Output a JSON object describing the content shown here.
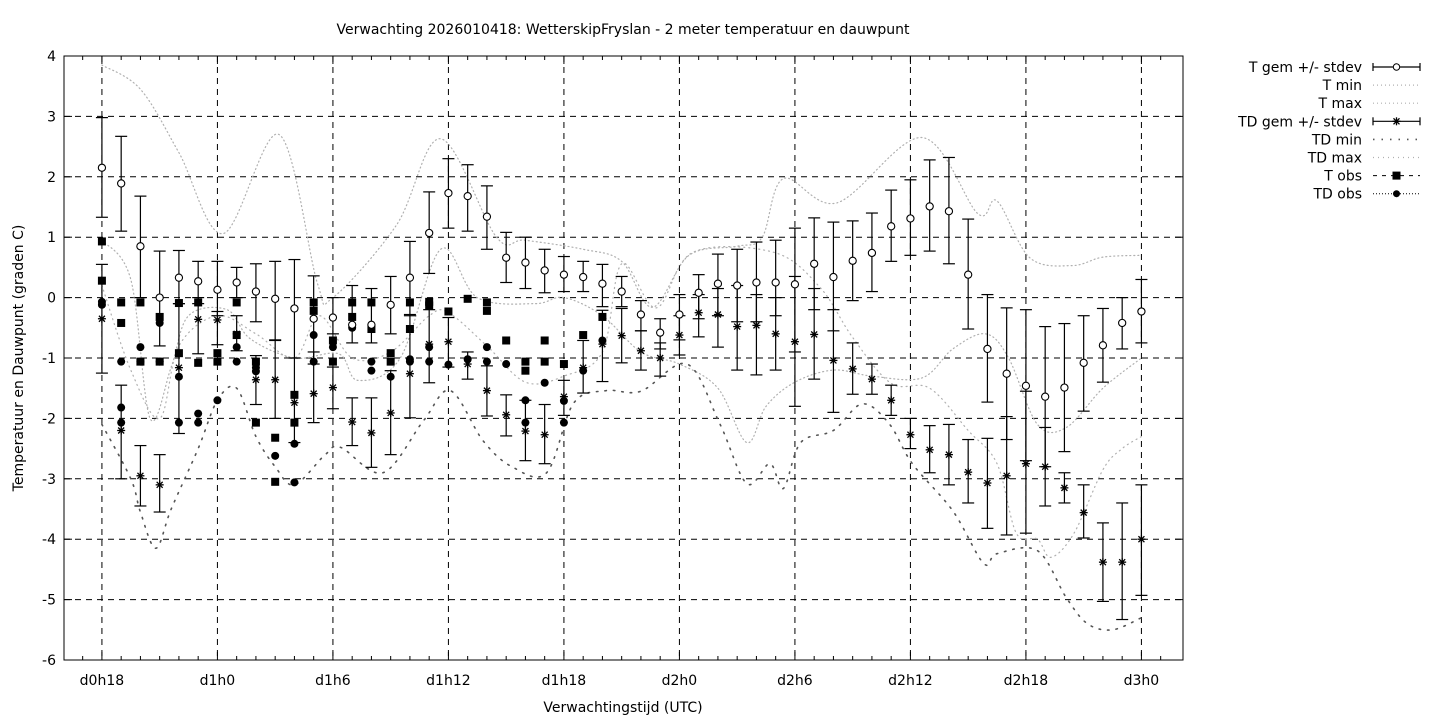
{
  "chart_data": {
    "type": "line",
    "title": "Verwachting 2026010418: WetterskipFryslan - 2 meter temperatuur en dauwpunt",
    "xlabel": "Verwachtingstijd (UTC)",
    "ylabel": "Temperatuur en Dauwpunt (graden C)",
    "xlim": [
      16.03,
      74.16
    ],
    "ylim": [
      -6,
      4
    ],
    "grid": true,
    "legend_position": "outside-top-right",
    "legend": [
      "T gem +/- stdev",
      "T min",
      "T max",
      "TD gem +/- stdev",
      "TD min",
      "TD max",
      "T obs",
      "TD obs"
    ],
    "x_ticks": [
      {
        "value": 18,
        "label": "d0h18"
      },
      {
        "value": 24,
        "label": "d1h0"
      },
      {
        "value": 30,
        "label": "d1h6"
      },
      {
        "value": 36,
        "label": "d1h12"
      },
      {
        "value": 42,
        "label": "d1h18"
      },
      {
        "value": 48,
        "label": "d2h0"
      },
      {
        "value": 54,
        "label": "d2h6"
      },
      {
        "value": 60,
        "label": "d2h12"
      },
      {
        "value": 66,
        "label": "d2h18"
      },
      {
        "value": 72,
        "label": "d3h0"
      }
    ],
    "y_ticks": [
      "-6",
      "-5",
      "-4",
      "-3",
      "-2",
      "-1",
      "0",
      "1",
      "2",
      "3",
      "4"
    ],
    "hours_start": 18,
    "t_mean": {
      "mean": [
        2.15,
        1.89,
        0.85,
        0.0,
        0.33,
        0.27,
        0.13,
        0.25,
        0.1,
        -0.02,
        -0.18,
        -0.35,
        -0.33,
        -0.45,
        -0.45,
        -0.12,
        0.33,
        1.07,
        1.73,
        1.68,
        1.34,
        0.66,
        0.58,
        0.45,
        0.38,
        0.34,
        0.23,
        0.1,
        -0.28,
        -0.58,
        -0.28,
        0.08,
        0.23,
        0.2,
        0.25,
        0.25,
        0.22,
        0.56,
        0.34,
        0.61,
        0.74,
        1.18,
        1.31,
        1.51,
        1.43,
        0.38,
        -0.85,
        -1.26,
        -1.46,
        -1.64,
        -1.49,
        -1.08,
        -0.79,
        -0.42,
        -0.23
      ],
      "hi": [
        2.98,
        2.67,
        1.68,
        0.77,
        0.78,
        0.6,
        0.6,
        0.5,
        0.56,
        0.6,
        0.63,
        0.36,
        0.0,
        0.2,
        0.15,
        0.35,
        0.93,
        1.75,
        2.3,
        2.2,
        1.85,
        1.08,
        1.0,
        0.8,
        0.68,
        0.6,
        0.55,
        0.35,
        -0.05,
        -0.35,
        0.05,
        0.38,
        0.72,
        0.8,
        0.92,
        0.95,
        1.15,
        1.32,
        1.25,
        1.27,
        1.4,
        1.78,
        1.95,
        2.28,
        2.32,
        1.3,
        0.05,
        -0.17,
        -0.2,
        -0.48,
        -0.43,
        -0.3,
        -0.18,
        0.0,
        0.3
      ],
      "lo": [
        1.33,
        1.1,
        0.0,
        -0.8,
        -0.1,
        -0.1,
        -0.3,
        0.0,
        -0.4,
        -0.7,
        -1.0,
        -1.1,
        -0.6,
        -0.75,
        -0.75,
        -0.6,
        -0.3,
        0.4,
        1.15,
        1.1,
        0.8,
        0.25,
        0.15,
        0.08,
        0.1,
        0.1,
        -0.15,
        -0.15,
        -0.55,
        -0.85,
        -0.7,
        -0.35,
        -0.3,
        -0.4,
        -0.4,
        -0.3,
        -0.9,
        -0.2,
        -0.55,
        -0.05,
        0.1,
        0.6,
        0.7,
        0.77,
        0.56,
        -0.52,
        -1.73,
        -2.35,
        -2.7,
        -2.8,
        -2.55,
        -1.88,
        -1.4,
        -0.85,
        -0.75
      ]
    },
    "td_mean": {
      "mean": [
        -0.35,
        -2.2,
        -2.95,
        -3.1,
        -1.16,
        -0.36,
        -0.37,
        -0.6,
        -1.36,
        -1.36,
        -1.74,
        -1.59,
        -1.49,
        -2.06,
        -2.24,
        -1.91,
        -1.26,
        -0.77,
        -0.73,
        -1.1,
        -1.54,
        -1.94,
        -2.21,
        -2.27,
        -1.64,
        -1.16,
        -0.77,
        -0.63,
        -0.88,
        -1.0,
        -0.62,
        -0.25,
        -0.28,
        -0.48,
        -0.46,
        -0.6,
        -0.73,
        -0.61,
        -1.04,
        -1.18,
        -1.35,
        -1.7,
        -2.27,
        -2.52,
        -2.6,
        -2.89,
        -3.07,
        -2.95,
        -2.75,
        -2.8,
        -3.15,
        -3.56,
        -4.38,
        -4.38,
        -4.0
      ],
      "hi": [
        0.55,
        -1.45,
        -2.45,
        -2.6,
        -0.1,
        0.0,
        -0.23,
        -0.3,
        -0.96,
        -0.71,
        -1.0,
        -0.9,
        -1.15,
        -1.66,
        -1.66,
        -1.21,
        -0.28,
        -0.2,
        -0.33,
        -0.9,
        -1.13,
        -1.61,
        -1.7,
        -1.77,
        -1.37,
        -0.71,
        -0.21,
        -0.18,
        -0.55,
        -0.75,
        -0.3,
        0.05,
        0.15,
        0.2,
        0.05,
        0.0,
        0.35,
        0.15,
        -0.2,
        -0.75,
        -1.1,
        -1.45,
        -2.0,
        -2.12,
        -2.1,
        -2.35,
        -2.33,
        -1.97,
        -1.55,
        -2.15,
        -2.9,
        -3.1,
        -3.73,
        -3.4,
        -3.1
      ],
      "lo": [
        -1.25,
        -3.0,
        -3.45,
        -3.55,
        -2.25,
        -0.93,
        -0.78,
        -0.88,
        -1.77,
        -2.0,
        -2.4,
        -2.07,
        -1.84,
        -2.45,
        -2.81,
        -2.6,
        -1.99,
        -1.41,
        -1.15,
        -1.35,
        -1.96,
        -2.29,
        -2.7,
        -2.75,
        -1.95,
        -1.58,
        -1.39,
        -1.08,
        -1.2,
        -1.3,
        -0.95,
        -0.65,
        -0.82,
        -1.2,
        -1.28,
        -1.2,
        -1.8,
        -1.35,
        -1.9,
        -1.6,
        -1.6,
        -1.95,
        -2.5,
        -2.9,
        -3.1,
        -3.4,
        -3.82,
        -3.93,
        -3.9,
        -3.45,
        -3.4,
        -3.98,
        -5.03,
        -5.33,
        -4.93
      ]
    },
    "t_min": [
      [
        18,
        0.95
      ],
      [
        19.5,
        0.3
      ],
      [
        20.5,
        -2.0
      ],
      [
        21.6,
        -1.15
      ],
      [
        22.5,
        -0.3
      ],
      [
        24.5,
        -0.2
      ],
      [
        25.7,
        -0.68
      ],
      [
        28,
        -1.0
      ],
      [
        30.3,
        -0.93
      ],
      [
        31.3,
        -1.37
      ],
      [
        33.5,
        -1.0
      ],
      [
        35.6,
        0.8
      ],
      [
        37.5,
        0.0
      ],
      [
        40.5,
        -0.1
      ],
      [
        42,
        0.0
      ],
      [
        44,
        -0.3
      ],
      [
        46,
        -0.9
      ],
      [
        48,
        -1.1
      ],
      [
        50,
        -1.5
      ],
      [
        51.5,
        -2.4
      ],
      [
        52.5,
        -1.8
      ],
      [
        54,
        -1.4
      ],
      [
        56,
        -1.2
      ],
      [
        58,
        -1.3
      ],
      [
        60.6,
        -1.33
      ],
      [
        62.2,
        -0.85
      ],
      [
        63.9,
        -0.6
      ],
      [
        65.1,
        -1.0
      ],
      [
        66.6,
        -2.1
      ],
      [
        68.1,
        -2.15
      ],
      [
        70,
        -1.5
      ],
      [
        72,
        -1.0
      ]
    ],
    "t_max": [
      [
        18,
        3.85
      ],
      [
        20,
        3.45
      ],
      [
        22,
        2.4
      ],
      [
        24.3,
        1.06
      ],
      [
        27.2,
        2.7
      ],
      [
        29.2,
        0.23
      ],
      [
        30,
        0.0
      ],
      [
        33.3,
        1.2
      ],
      [
        35.6,
        2.63
      ],
      [
        38.5,
        1.0
      ],
      [
        40,
        0.95
      ],
      [
        43,
        0.8
      ],
      [
        45,
        0.6
      ],
      [
        46.6,
        -0.16
      ],
      [
        48.5,
        0.7
      ],
      [
        51,
        0.85
      ],
      [
        52.3,
        1.0
      ],
      [
        53.4,
        1.97
      ],
      [
        56.2,
        1.57
      ],
      [
        60.6,
        2.65
      ],
      [
        63.5,
        1.39
      ],
      [
        64.5,
        1.6
      ],
      [
        66.2,
        0.66
      ],
      [
        68.4,
        0.53
      ],
      [
        70,
        0.67
      ],
      [
        72,
        0.7
      ]
    ],
    "td_min": [
      [
        18,
        -2.1
      ],
      [
        19.5,
        -3.0
      ],
      [
        20,
        -3.55
      ],
      [
        20.8,
        -4.15
      ],
      [
        21.6,
        -3.5
      ],
      [
        23,
        -2.5
      ],
      [
        24,
        -1.7
      ],
      [
        25,
        -1.5
      ],
      [
        26,
        -2.3
      ],
      [
        27,
        -2.8
      ],
      [
        28,
        -3.1
      ],
      [
        29.6,
        -2.6
      ],
      [
        30.4,
        -2.48
      ],
      [
        32.6,
        -2.9
      ],
      [
        34.7,
        -2.04
      ],
      [
        36.1,
        -1.54
      ],
      [
        37.8,
        -2.37
      ],
      [
        39.3,
        -2.8
      ],
      [
        41.1,
        -2.9
      ],
      [
        42.5,
        -1.75
      ],
      [
        44.2,
        -1.54
      ],
      [
        46,
        -1.55
      ],
      [
        48.4,
        -1.1
      ],
      [
        50.1,
        -2.09
      ],
      [
        51.5,
        -3.08
      ],
      [
        52.7,
        -2.75
      ],
      [
        53.4,
        -3.16
      ],
      [
        54.3,
        -2.4
      ],
      [
        56,
        -2.2
      ],
      [
        57.5,
        -1.76
      ],
      [
        58.9,
        -2.09
      ],
      [
        60.1,
        -2.75
      ],
      [
        62.2,
        -3.53
      ],
      [
        63.8,
        -4.4
      ],
      [
        64.5,
        -4.24
      ],
      [
        66.6,
        -4.19
      ],
      [
        68.1,
        -4.97
      ],
      [
        69.2,
        -5.4
      ],
      [
        70.5,
        -5.5
      ],
      [
        72,
        -5.3
      ]
    ],
    "td_max": [
      [
        18,
        0.2
      ],
      [
        19.5,
        -1.2
      ],
      [
        21,
        -2.0
      ],
      [
        22,
        -0.8
      ],
      [
        24,
        -0.3
      ],
      [
        26,
        -0.6
      ],
      [
        28,
        -1.0
      ],
      [
        29.3,
        -0.3
      ],
      [
        31,
        -1.0
      ],
      [
        33,
        -0.9
      ],
      [
        35,
        -0.3
      ],
      [
        36,
        -0.25
      ],
      [
        38,
        -0.8
      ],
      [
        40,
        -1.4
      ],
      [
        42,
        -1.3
      ],
      [
        44,
        -0.9
      ],
      [
        45,
        0.56
      ],
      [
        46.8,
        -0.17
      ],
      [
        48.7,
        0.75
      ],
      [
        52.9,
        0.75
      ],
      [
        55.3,
        0.17
      ],
      [
        57,
        -0.66
      ],
      [
        59,
        -1.42
      ],
      [
        61,
        -1.5
      ],
      [
        63,
        -2.2
      ],
      [
        64.5,
        -2.75
      ],
      [
        65.5,
        -3.9
      ],
      [
        66.6,
        -4.0
      ],
      [
        67.3,
        -4.3
      ],
      [
        68.5,
        -3.9
      ],
      [
        70,
        -2.85
      ],
      [
        71,
        -2.5
      ],
      [
        72,
        -2.3
      ]
    ],
    "t_obs": [
      [
        18,
        0.93
      ],
      [
        18,
        0.28
      ],
      [
        19,
        -0.08
      ],
      [
        19,
        -0.42
      ],
      [
        20,
        -0.08
      ],
      [
        20,
        -1.06
      ],
      [
        21,
        -0.32
      ],
      [
        21,
        -1.06
      ],
      [
        22,
        -0.09
      ],
      [
        22,
        -0.92
      ],
      [
        23,
        -0.08
      ],
      [
        23,
        -1.08
      ],
      [
        24,
        -0.92
      ],
      [
        24,
        -1.06
      ],
      [
        25,
        -0.08
      ],
      [
        25,
        -0.62
      ],
      [
        26,
        -1.06
      ],
      [
        26,
        -2.07
      ],
      [
        27,
        -2.32
      ],
      [
        27,
        -3.05
      ],
      [
        28,
        -1.61
      ],
      [
        28,
        -2.07
      ],
      [
        29,
        -0.08
      ],
      [
        29,
        -0.22
      ],
      [
        30,
        -0.71
      ],
      [
        30,
        -1.06
      ],
      [
        31,
        -0.08
      ],
      [
        31,
        -0.32
      ],
      [
        32,
        -0.08
      ],
      [
        32,
        -0.52
      ],
      [
        33,
        -0.92
      ],
      [
        33,
        -1.06
      ],
      [
        34,
        -0.08
      ],
      [
        34,
        -0.52
      ],
      [
        35,
        -0.07
      ],
      [
        35,
        -0.13
      ],
      [
        36,
        -0.23
      ],
      [
        37,
        -0.02
      ],
      [
        38,
        -0.08
      ],
      [
        38,
        -0.22
      ],
      [
        39,
        -0.71
      ],
      [
        40,
        -1.06
      ],
      [
        40,
        -1.21
      ],
      [
        41,
        -0.71
      ],
      [
        41,
        -1.06
      ],
      [
        42,
        -1.1
      ],
      [
        43,
        -0.62
      ],
      [
        44,
        -0.32
      ]
    ],
    "td_obs": [
      [
        18,
        -0.07
      ],
      [
        18,
        -0.12
      ],
      [
        19,
        -1.06
      ],
      [
        19,
        -1.82
      ],
      [
        19,
        -2.07
      ],
      [
        20,
        -0.82
      ],
      [
        20,
        -1.06
      ],
      [
        21,
        -0.42
      ],
      [
        21,
        -1.06
      ],
      [
        22,
        -1.31
      ],
      [
        22,
        -2.07
      ],
      [
        23,
        -1.92
      ],
      [
        23,
        -2.07
      ],
      [
        24,
        -1.7
      ],
      [
        25,
        -0.82
      ],
      [
        25,
        -1.06
      ],
      [
        26,
        -1.16
      ],
      [
        26,
        -1.22
      ],
      [
        27,
        -2.62
      ],
      [
        28,
        -2.42
      ],
      [
        28,
        -3.06
      ],
      [
        29,
        -0.62
      ],
      [
        29,
        -1.06
      ],
      [
        30,
        -0.82
      ],
      [
        31,
        -0.5
      ],
      [
        32,
        -1.06
      ],
      [
        32,
        -1.21
      ],
      [
        33,
        -1.31
      ],
      [
        34,
        -1.02
      ],
      [
        34,
        -1.06
      ],
      [
        35,
        -0.82
      ],
      [
        35,
        -1.06
      ],
      [
        36,
        -1.11
      ],
      [
        37,
        -1.02
      ],
      [
        38,
        -0.82
      ],
      [
        38,
        -1.06
      ],
      [
        39,
        -1.1
      ],
      [
        40,
        -1.7
      ],
      [
        40,
        -2.07
      ],
      [
        41,
        -1.41
      ],
      [
        42,
        -1.71
      ],
      [
        42,
        -2.07
      ],
      [
        43,
        -1.21
      ],
      [
        44,
        -0.71
      ]
    ],
    "colors": {
      "axis": "#000000",
      "min_max_light": "#b0b0b0",
      "td_min": "#555555"
    }
  }
}
